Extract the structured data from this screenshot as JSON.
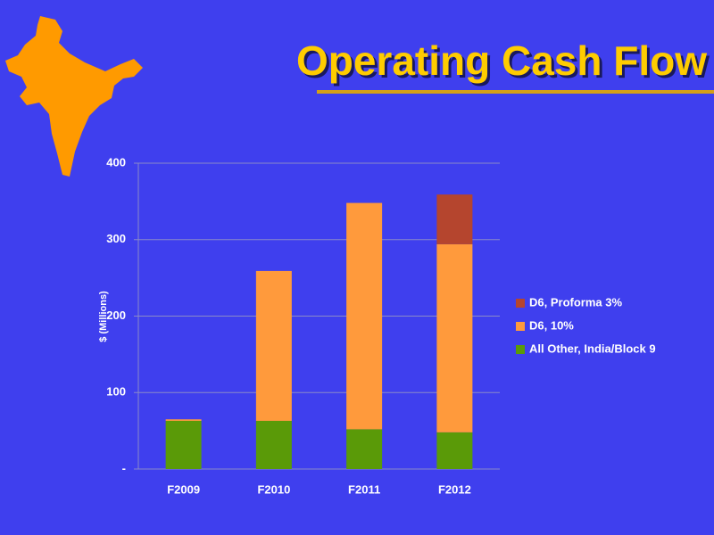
{
  "chart_data": {
    "type": "stacked_bar",
    "title": "Operating Cash Flow",
    "y_label": "$ (Millions)",
    "categories": [
      "F2009",
      "F2010",
      "F2011",
      "F2012"
    ],
    "series": [
      {
        "name": "All Other, India/Block 9",
        "color": "#5a9a08",
        "values": [
          63,
          63,
          52,
          48
        ]
      },
      {
        "name": "D6, 10%",
        "color": "#ff9a3c",
        "values": [
          2,
          196,
          296,
          246
        ]
      },
      {
        "name": "D6, Proforma 3%",
        "color": "#b5452e",
        "values": [
          0,
          0,
          0,
          65
        ]
      }
    ],
    "ylim": [
      0,
      400
    ],
    "yticks": [
      {
        "value": 0,
        "label": "-"
      },
      100,
      200,
      300,
      400
    ],
    "grid": true
  }
}
